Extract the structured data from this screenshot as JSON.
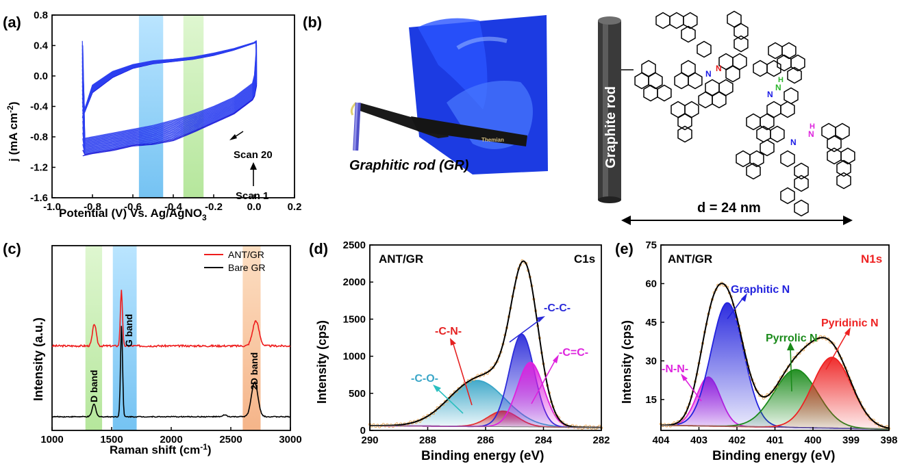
{
  "panels": {
    "a": {
      "label": "(a)",
      "xlabel": "Potential (V) Vs. Ag/AgNO",
      "xlabel_sub": "3",
      "ylabel": "j (mA cm",
      "ylabel_sup": "-2",
      "ylabel_end": ")",
      "xticks": [
        "-1.0",
        "-0.8",
        "-0.6",
        "-0.4",
        "-0.2",
        "0.0",
        "0.2"
      ],
      "yticks": [
        "0.8",
        "0.4",
        "0.0",
        "-0.4",
        "-0.8",
        "-1.2",
        "-1.6"
      ],
      "scan20": "Scan 20",
      "scan1": "Scan 1",
      "band_blue_x": [
        -0.57,
        -0.45
      ],
      "band_green_x": [
        -0.35,
        -0.25
      ]
    },
    "b": {
      "label": "(b)",
      "photo_caption": "Graphitic rod (GR)",
      "rod_label": "Graphite rod",
      "distance": "d = 24 nm",
      "n_label": "N",
      "h_label": "H",
      "tweezer_brand": "Themian"
    },
    "c": {
      "label": "(c)",
      "xlabel": "Raman shift (cm",
      "xlabel_sup": "-1",
      "xlabel_end": ")",
      "ylabel": "Intensity (a.u.)",
      "xticks": [
        "1000",
        "1500",
        "2000",
        "2500",
        "3000"
      ],
      "legend": [
        "ANT/GR",
        "Bare GR"
      ],
      "bands": [
        "D band",
        "G band",
        "2D band"
      ]
    },
    "d": {
      "label": "(d)",
      "title_left": "ANT/GR",
      "title_right": "C1s",
      "xlabel": "Binding energy (eV)",
      "ylabel": "Intensity (cps)",
      "xticks": [
        "290",
        "288",
        "286",
        "284",
        "282"
      ],
      "yticks": [
        "0",
        "500",
        "1000",
        "1500",
        "2000",
        "2500"
      ],
      "annotations": [
        "-C-O-",
        "-C-N-",
        "-C-C-",
        "-C=C-"
      ]
    },
    "e": {
      "label": "(e)",
      "title_left": "ANT/GR",
      "title_right": "N1s",
      "xlabel": "Binding energy (eV)",
      "ylabel": "Intensity (cps)",
      "xticks": [
        "404",
        "403",
        "402",
        "401",
        "400",
        "399",
        "398"
      ],
      "yticks": [
        "15",
        "30",
        "45",
        "60",
        "75"
      ],
      "annotations": [
        "-N-N-",
        "Graphitic N",
        "Pyrrolic N",
        "Pyridinic N"
      ]
    }
  },
  "chart_data": [
    {
      "type": "line",
      "panel": "a",
      "xlabel": "Potential (V) Vs. Ag/AgNO3",
      "ylabel": "j (mA cm-2)",
      "xlim": [
        -1.0,
        0.2
      ],
      "ylim": [
        -1.6,
        0.8
      ],
      "series": [
        {
          "name": "Scan 1",
          "color": "#1f1fe0",
          "upper": {
            "x": [
              -0.85,
              -0.8,
              -0.7,
              -0.6,
              -0.5,
              -0.4,
              -0.3,
              -0.2,
              -0.1,
              0.0,
              0.01
            ],
            "y": [
              -0.55,
              -0.22,
              -0.02,
              0.1,
              0.16,
              0.19,
              0.22,
              0.27,
              0.34,
              0.43,
              0.44
            ]
          },
          "lower": {
            "x": [
              -0.85,
              -0.8,
              -0.7,
              -0.6,
              -0.5,
              -0.4,
              -0.3,
              -0.2,
              -0.1,
              0.0,
              0.01
            ],
            "y": [
              -1.05,
              -1.02,
              -0.98,
              -0.92,
              -0.9,
              -0.85,
              -0.74,
              -0.62,
              -0.5,
              -0.3,
              -0.13
            ]
          }
        },
        {
          "name": "Scan 20",
          "color": "#3040f0",
          "upper": {
            "x": [
              -0.84,
              -0.8,
              -0.7,
              -0.6,
              -0.5,
              -0.4,
              -0.3,
              -0.2,
              -0.1,
              0.0,
              0.01
            ],
            "y": [
              -0.45,
              -0.12,
              0.06,
              0.15,
              0.2,
              0.22,
              0.25,
              0.3,
              0.36,
              0.44,
              0.46
            ]
          },
          "lower": {
            "x": [
              -0.84,
              -0.8,
              -0.7,
              -0.6,
              -0.5,
              -0.4,
              -0.3,
              -0.2,
              -0.1,
              0.0,
              0.01
            ],
            "y": [
              -0.82,
              -0.8,
              -0.75,
              -0.7,
              -0.65,
              -0.58,
              -0.5,
              -0.4,
              -0.28,
              -0.08,
              0.4
            ]
          }
        }
      ]
    },
    {
      "type": "line",
      "panel": "c",
      "xlabel": "Raman shift (cm-1)",
      "ylabel": "Intensity (a.u.)",
      "xlim": [
        1000,
        3000
      ],
      "series": [
        {
          "name": "ANT/GR",
          "color": "#ee1c1c",
          "peaks": [
            {
              "x": 1355,
              "h": 0.14
            },
            {
              "x": 1582,
              "h": 0.36
            },
            {
              "x": 2710,
              "h": 0.16
            }
          ],
          "baseline": 0.45
        },
        {
          "name": "Bare GR",
          "color": "#000000",
          "peaks": [
            {
              "x": 1352,
              "h": 0.08
            },
            {
              "x": 1583,
              "h": 0.58
            },
            {
              "x": 2700,
              "h": 0.22
            }
          ],
          "baseline": 0.0
        }
      ],
      "bands": [
        {
          "name": "D band",
          "range": [
            1280,
            1420
          ]
        },
        {
          "name": "G band",
          "range": [
            1510,
            1710
          ]
        },
        {
          "name": "2D band",
          "range": [
            2600,
            2750
          ]
        }
      ]
    },
    {
      "type": "area",
      "panel": "d",
      "xlabel": "Binding energy (eV)",
      "ylabel": "Intensity (cps)",
      "xlim": [
        290,
        282
      ],
      "ylim": [
        0,
        2500
      ],
      "series": [
        {
          "name": "-C-O-",
          "center": 286.3,
          "height": 620,
          "width": 1.7,
          "color": "#3aa6c8"
        },
        {
          "name": "-C-N-",
          "center": 285.4,
          "height": 210,
          "width": 0.9,
          "color": "#e53030"
        },
        {
          "name": "-C-C-",
          "center": 284.75,
          "height": 1250,
          "width": 0.75,
          "color": "#2b2bd9"
        },
        {
          "name": "-C=C-",
          "center": 284.45,
          "height": 870,
          "width": 0.8,
          "color": "#dd22dd"
        }
      ]
    },
    {
      "type": "area",
      "panel": "e",
      "xlabel": "Binding energy (eV)",
      "ylabel": "Intensity (cps)",
      "xlim": [
        404,
        398
      ],
      "ylim": [
        3,
        75
      ],
      "series": [
        {
          "name": "-N-N-",
          "center": 402.75,
          "height": 19,
          "width": 0.55,
          "color": "#dd22dd"
        },
        {
          "name": "Graphitic N",
          "center": 402.25,
          "height": 48,
          "width": 0.75,
          "color": "#2222dd"
        },
        {
          "name": "Pyrrolic N",
          "center": 400.45,
          "height": 22.5,
          "width": 1.0,
          "color": "#1a8a1a"
        },
        {
          "name": "Pyridinic N",
          "center": 399.5,
          "height": 27.5,
          "width": 0.9,
          "color": "#ee2222"
        }
      ]
    }
  ]
}
